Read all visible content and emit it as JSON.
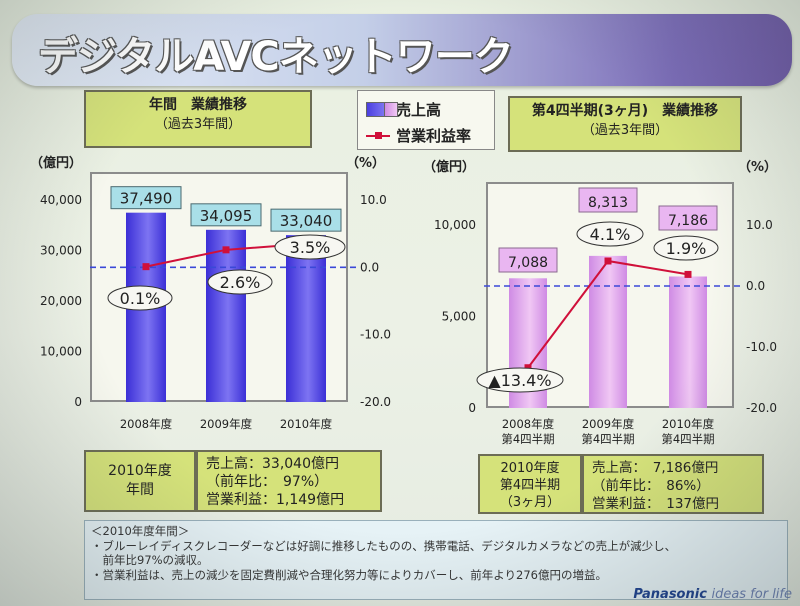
{
  "slide": {
    "title": "デジタルAVCネットワーク",
    "brand": "Panasonic",
    "brand_tagline": "ideas for life"
  },
  "legend": {
    "sales_label": "売上高",
    "margin_label": "営業利益率"
  },
  "left_header": {
    "line1": "年間　業績推移",
    "line2": "（過去3年間）"
  },
  "right_header": {
    "line1": "第4四半期(3ヶ月)　業績推移",
    "line2": "（過去3年間）"
  },
  "units": {
    "left_y": "（億円）",
    "right_y": "（%）"
  },
  "chart_data": [
    {
      "type": "bar",
      "title": "年間　業績推移",
      "categories": [
        "2008年度",
        "2009年度",
        "2010年度"
      ],
      "series": [
        {
          "name": "売上高",
          "unit": "億円",
          "values": [
            37490,
            34095,
            33040
          ],
          "value_labels": [
            "37,490",
            "34,095",
            "33,040"
          ]
        },
        {
          "name": "営業利益率",
          "type": "line",
          "unit": "%",
          "values": [
            0.1,
            2.6,
            3.5
          ],
          "value_labels": [
            "0.1%",
            "2.6%",
            "3.5%"
          ]
        }
      ],
      "y_left": {
        "ylim": [
          0,
          40000
        ],
        "ticks": [
          "0",
          "10,000",
          "20,000",
          "30,000",
          "40,000"
        ]
      },
      "y_right": {
        "ylim": [
          -20,
          10
        ],
        "ticks": [
          "-20.0",
          "-10.0",
          "0.0",
          "10.0"
        ]
      },
      "colors": {
        "bar": "#5a4de6",
        "line": "#d0103a",
        "zero_line": "#3a48d8"
      }
    },
    {
      "type": "bar",
      "title": "第4四半期(3ヶ月)　業績推移",
      "categories": [
        [
          "2008年度",
          "第4四半期"
        ],
        [
          "2009年度",
          "第4四半期"
        ],
        [
          "2010年度",
          "第4四半期"
        ]
      ],
      "series": [
        {
          "name": "売上高",
          "unit": "億円",
          "values": [
            7088,
            8313,
            7186
          ],
          "value_labels": [
            "7,088",
            "8,313",
            "7,186"
          ]
        },
        {
          "name": "営業利益率",
          "type": "line",
          "unit": "%",
          "values": [
            -13.4,
            4.1,
            1.9
          ],
          "value_labels": [
            "▲13.4%",
            "4.1%",
            "1.9%"
          ]
        }
      ],
      "y_left": {
        "ylim": [
          0,
          10000
        ],
        "ticks": [
          "0",
          "5,000",
          "10,000"
        ]
      },
      "y_right": {
        "ylim": [
          -20,
          10
        ],
        "ticks": [
          "-20.0",
          "-10.0",
          "0.0",
          "10.0"
        ]
      },
      "colors": {
        "bar": "#dd9eef",
        "line": "#d0103a",
        "zero_line": "#3a48d8"
      }
    }
  ],
  "summary_left": {
    "period_line1": "2010年度",
    "period_line2": "年間",
    "sales": "売上高：33,040億円",
    "yoy": "（前年比：　97%）",
    "profit": "営業利益：1,149億円"
  },
  "summary_right": {
    "period_line1": "2010年度",
    "period_line2": "第4四半期",
    "period_line3": "（3ヶ月）",
    "sales": "売上高：　7,186億円",
    "yoy": "（前年比：　86%）",
    "profit": "営業利益：　137億円"
  },
  "note": {
    "header": "＜2010年度年間＞",
    "line1": "・ブルーレイディスクレコーダーなどは好調に推移したものの、携帯電話、デジタルカメラなどの売上が減少し、",
    "line2": "　前年比97%の減収。",
    "line3": "・営業利益は、売上の減少を固定費削減や合理化努力等によりカバーし、前年より276億円の増益。"
  }
}
